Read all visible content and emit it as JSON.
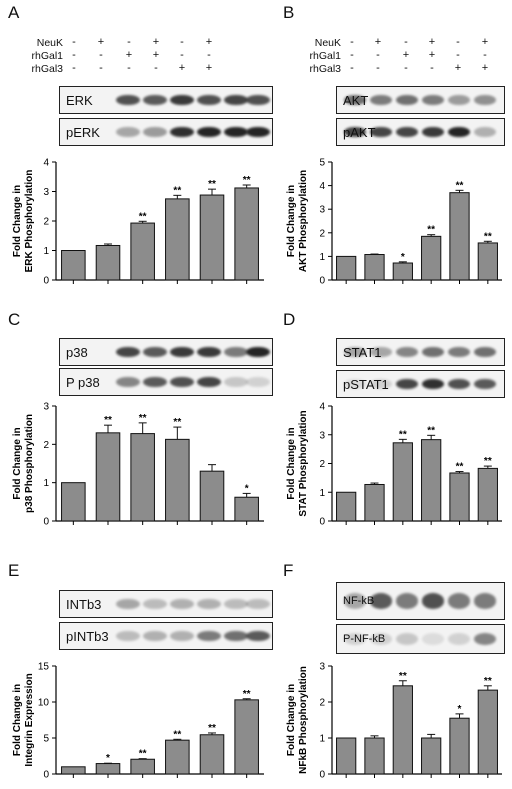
{
  "panels": {
    "A": {
      "label": "A",
      "conditions": [
        "NeuK",
        "",
        ""
      ],
      "blots": [
        "ERK",
        "pERK"
      ]
    },
    "B": {
      "label": "B",
      "conditions": [
        "NeuK",
        "rhGal1",
        "rhGal3"
      ],
      "blots": [
        "AKT",
        "pAKT"
      ]
    },
    "C": {
      "label": "C",
      "blots": [
        "p38",
        "P p38"
      ]
    },
    "D": {
      "label": "D",
      "blots": [
        "STAT1",
        "pSTAT1"
      ]
    },
    "E": {
      "label": "E",
      "blots": [
        "INTb3",
        "pINTb3"
      ]
    },
    "F": {
      "label": "F",
      "blots": [
        "NF-kB",
        "P-NF-kB"
      ]
    }
  },
  "conditions_a": [
    "NeuK",
    "rhGal1",
    "rhGal3"
  ],
  "condition_signs": [
    [
      "-",
      "+",
      "-",
      "+",
      "-",
      "+"
    ],
    [
      "-",
      "-",
      "+",
      "+",
      "-",
      "-"
    ],
    [
      "-",
      "-",
      "-",
      "-",
      "+",
      "+"
    ]
  ],
  "chart_data": [
    {
      "type": "bar",
      "panel": "A",
      "ylabel": "Fold Change in ERK Phosphorylation",
      "values": [
        1.0,
        1.17,
        1.93,
        2.75,
        2.88,
        3.12
      ],
      "errors": [
        0,
        0.05,
        0.06,
        0.12,
        0.2,
        0.1
      ],
      "sig": [
        "",
        "",
        "**",
        "**",
        "**",
        "**"
      ],
      "ylim": [
        0,
        4
      ],
      "yticks": [
        0,
        1,
        2,
        3,
        4
      ]
    },
    {
      "type": "bar",
      "panel": "B",
      "ylabel": "Fold Change in AKT Phosphorylation",
      "values": [
        1.0,
        1.08,
        0.72,
        1.85,
        3.7,
        1.57
      ],
      "errors": [
        0,
        0.02,
        0.05,
        0.07,
        0.1,
        0.07
      ],
      "sig": [
        "",
        "",
        "*",
        "**",
        "**",
        "**"
      ],
      "ylim": [
        0,
        5
      ],
      "yticks": [
        0,
        1,
        2,
        3,
        4,
        5
      ]
    },
    {
      "type": "bar",
      "panel": "C",
      "ylabel": "Fold Change in p38 Phosphorylation",
      "values": [
        1.0,
        2.3,
        2.28,
        2.13,
        1.3,
        0.62
      ],
      "errors": [
        0,
        0.2,
        0.28,
        0.32,
        0.17,
        0.1
      ],
      "sig": [
        "",
        "**",
        "**",
        "**",
        "",
        "*"
      ],
      "ylim": [
        0,
        3
      ],
      "yticks": [
        0,
        1,
        2,
        3
      ]
    },
    {
      "type": "bar",
      "panel": "D",
      "ylabel": "Fold Change in STAT Phosphorylation",
      "values": [
        1.0,
        1.27,
        2.72,
        2.83,
        1.67,
        1.83
      ],
      "errors": [
        0,
        0.05,
        0.12,
        0.15,
        0.05,
        0.08
      ],
      "sig": [
        "",
        "",
        "**",
        "**",
        "**",
        "**"
      ],
      "ylim": [
        0,
        4
      ],
      "yticks": [
        0,
        1,
        2,
        3,
        4
      ]
    },
    {
      "type": "bar",
      "panel": "E",
      "ylabel": "Fold Change in Integrin Expression",
      "values": [
        1.0,
        1.45,
        2.05,
        4.7,
        5.45,
        10.3
      ],
      "errors": [
        0,
        0.05,
        0.08,
        0.12,
        0.25,
        0.15
      ],
      "sig": [
        "",
        "*",
        "**",
        "**",
        "**",
        "**"
      ],
      "ylim": [
        0,
        15
      ],
      "yticks": [
        0,
        5,
        10,
        15
      ]
    },
    {
      "type": "bar",
      "panel": "F",
      "ylabel": "Fold Change in NFkB Phosphorylation",
      "values": [
        1.0,
        1.0,
        2.45,
        1.0,
        1.55,
        2.33
      ],
      "errors": [
        0,
        0.06,
        0.14,
        0.1,
        0.12,
        0.12
      ],
      "sig": [
        "",
        "",
        "**",
        "",
        "*",
        "**"
      ],
      "ylim": [
        0,
        3
      ],
      "yticks": [
        0,
        1,
        2,
        3
      ]
    }
  ]
}
